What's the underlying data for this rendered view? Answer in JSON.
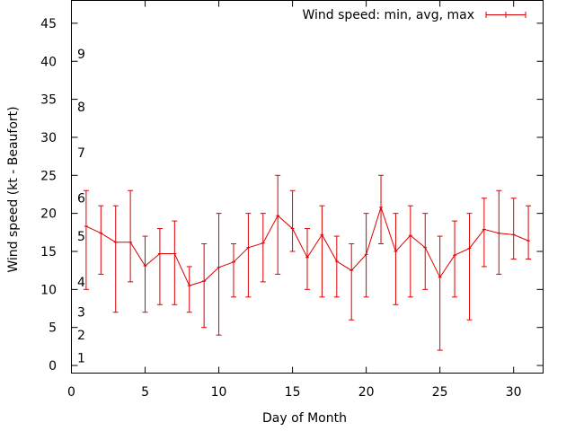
{
  "chart_data": {
    "type": "line",
    "title": "",
    "xlabel": "Day of Month",
    "ylabel": "Wind speed (kt - Beaufort)",
    "xlim": [
      0,
      32
    ],
    "ylim": [
      -1,
      48
    ],
    "x_ticks": [
      0,
      5,
      10,
      15,
      20,
      25,
      30
    ],
    "y_ticks": [
      0,
      5,
      10,
      15,
      20,
      25,
      30,
      35,
      40,
      45
    ],
    "grid": false,
    "legend_position": "top-right",
    "series": [
      {
        "name": "Wind speed: min, avg, max",
        "color": "#dd0000",
        "x": [
          1,
          2,
          3,
          4,
          5,
          6,
          7,
          8,
          9,
          10,
          11,
          12,
          13,
          14,
          15,
          16,
          17,
          18,
          19,
          20,
          21,
          22,
          23,
          24,
          25,
          26,
          27,
          28,
          29,
          30,
          31
        ],
        "avg": [
          18.3,
          17.4,
          16.2,
          16.2,
          13.1,
          14.7,
          14.7,
          10.5,
          11.1,
          12.9,
          13.6,
          15.5,
          16.1,
          19.7,
          18.0,
          14.2,
          17.2,
          13.7,
          12.5,
          14.6,
          20.8,
          15.0,
          17.1,
          15.5,
          11.6,
          14.5,
          15.4,
          17.9,
          17.4,
          17.2,
          16.4
        ],
        "min": [
          10,
          12,
          7,
          11,
          7,
          8,
          8,
          7,
          5,
          4,
          9,
          9,
          11,
          12,
          15,
          10,
          9,
          9,
          6,
          9,
          16,
          8,
          9,
          10,
          2,
          9,
          6,
          13,
          12,
          14,
          14
        ],
        "max": [
          23,
          21,
          21,
          23,
          17,
          18,
          19,
          13,
          16,
          20,
          16,
          20,
          20,
          25,
          23,
          18,
          21,
          17,
          16,
          20,
          25,
          20,
          21,
          20,
          17,
          19,
          20,
          22,
          23,
          22,
          21
        ]
      }
    ],
    "annotations": [
      {
        "text": "1",
        "y": 1
      },
      {
        "text": "2",
        "y": 4
      },
      {
        "text": "3",
        "y": 7
      },
      {
        "text": "4",
        "y": 11
      },
      {
        "text": "5",
        "y": 17
      },
      {
        "text": "6",
        "y": 22
      },
      {
        "text": "7",
        "y": 28
      },
      {
        "text": "8",
        "y": 34
      },
      {
        "text": "9",
        "y": 41
      }
    ]
  }
}
